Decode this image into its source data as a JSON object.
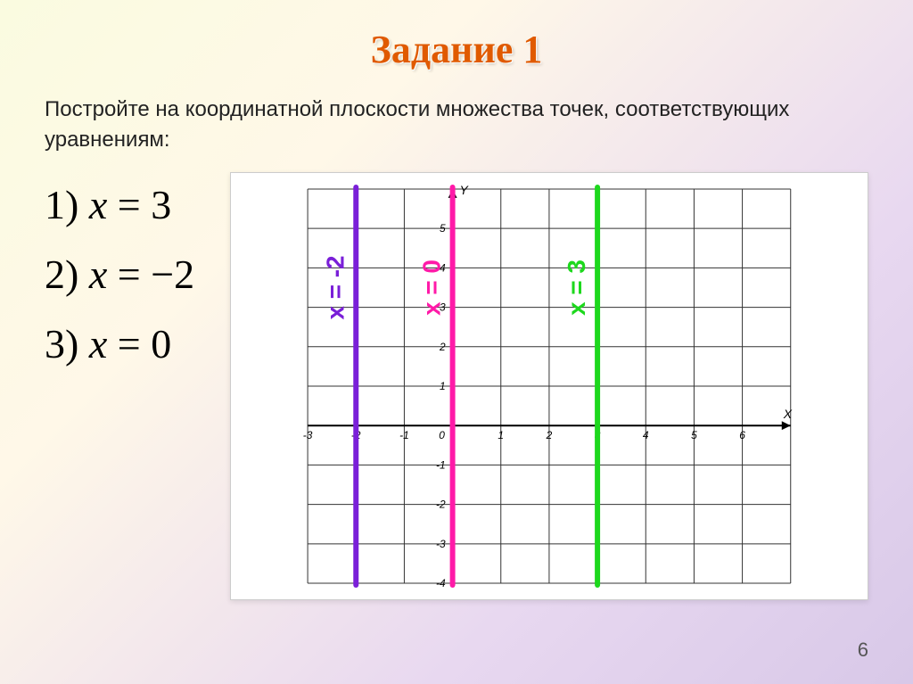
{
  "title": "Задание 1",
  "description": "Постройте на координатной плоскости множества точек, соответствующих уравнениям:",
  "equations": [
    {
      "num": "1)",
      "lhs": "x",
      "rhs": "3"
    },
    {
      "num": "2)",
      "lhs": "x",
      "rhs": "−2"
    },
    {
      "num": "3)",
      "lhs": "x",
      "rhs": "0"
    }
  ],
  "page_number": "6",
  "chart": {
    "type": "line",
    "xlim": [
      -3,
      7
    ],
    "ylim": [
      -4,
      6
    ],
    "xtick_step": 1,
    "ytick_step": 1,
    "x_axis_label": "X",
    "y_axis_label": "Y",
    "background": "#ffffff",
    "grid_color": "#333333",
    "grid_width": 1,
    "axis_color": "#000000",
    "axis_width": 2,
    "tick_label_fontsize": 12,
    "tick_label_color": "#000000",
    "tick_label_font": "Arial",
    "tick_label_style": "italic",
    "lines": [
      {
        "x": -2,
        "color": "#7a1fd8",
        "width": 6,
        "label": "x = -2",
        "label_color": "#7a1fd8"
      },
      {
        "x": 0,
        "color": "#ff1aa8",
        "width": 6,
        "label": "x = 0",
        "label_color": "#ff1aa8"
      },
      {
        "x": 3,
        "color": "#1dd81d",
        "width": 6,
        "label": "x = 3",
        "label_color": "#1dd81d"
      }
    ],
    "label_fontsize": 28,
    "label_fontweight": "bold",
    "label_rotation": -90
  },
  "colors": {
    "title": "#e05a00",
    "text": "#222222",
    "bg_gradient": [
      "#fafbe0",
      "#fff8e8",
      "#e8d8f0",
      "#d8c8e8"
    ]
  }
}
